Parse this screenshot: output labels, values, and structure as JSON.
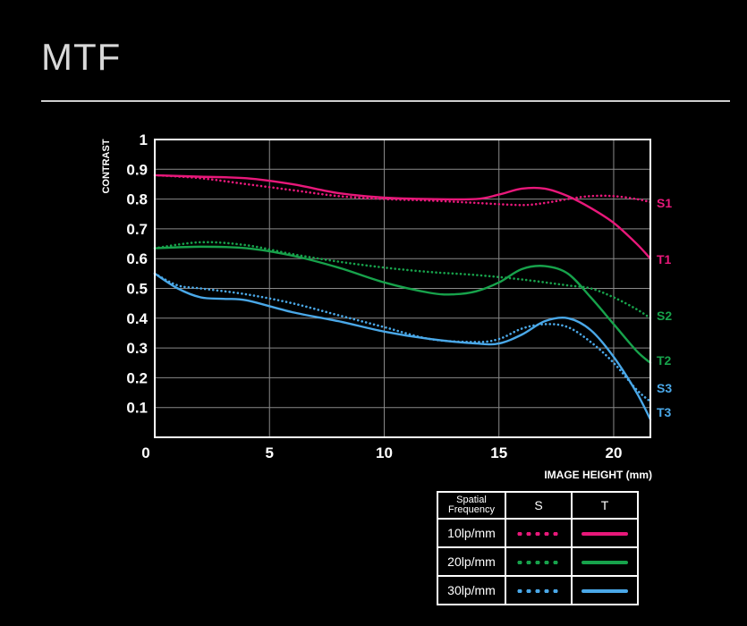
{
  "page": {
    "title": "MTF"
  },
  "legend": {
    "header": {
      "freq_line1": "Spatial",
      "freq_line2": "Frequency",
      "s": "S",
      "t": "T"
    },
    "rows": [
      {
        "label": "10lp/mm",
        "color": "#e8187a"
      },
      {
        "label": "20lp/mm",
        "color": "#17a24b"
      },
      {
        "label": "30lp/mm",
        "color": "#4aa8e8"
      }
    ]
  },
  "chart_data": {
    "type": "line",
    "title": "",
    "xlabel": "IMAGE HEIGHT  (mm)",
    "ylabel": "CONTRAST",
    "xlim": [
      0,
      21.6
    ],
    "ylim": [
      0,
      1
    ],
    "xticks": [
      "0",
      "5",
      "10",
      "15",
      "20"
    ],
    "yticks": [
      "0.1",
      "0.2",
      "0.3",
      "0.4",
      "0.5",
      "0.6",
      "0.7",
      "0.8",
      "0.9",
      "1"
    ],
    "grid": true,
    "series": [
      {
        "name": "S1",
        "color": "#e8187a",
        "style": "dotted",
        "x": [
          0,
          2,
          4,
          6,
          8,
          10,
          12,
          14,
          16,
          17,
          18,
          19,
          20,
          21,
          21.6
        ],
        "y": [
          0.88,
          0.87,
          0.85,
          0.83,
          0.81,
          0.8,
          0.795,
          0.787,
          0.78,
          0.787,
          0.8,
          0.81,
          0.81,
          0.8,
          0.79
        ]
      },
      {
        "name": "T1",
        "color": "#e8187a",
        "style": "solid",
        "x": [
          0,
          2,
          4,
          6,
          8,
          10,
          12,
          14,
          15,
          16,
          17,
          18,
          19,
          20,
          21,
          21.6
        ],
        "y": [
          0.88,
          0.875,
          0.87,
          0.85,
          0.82,
          0.805,
          0.8,
          0.8,
          0.815,
          0.835,
          0.835,
          0.81,
          0.77,
          0.72,
          0.65,
          0.6
        ]
      },
      {
        "name": "S2",
        "color": "#17a24b",
        "style": "dotted",
        "x": [
          0,
          2,
          4,
          6,
          8,
          10,
          12,
          14,
          16,
          18,
          19,
          20,
          21,
          21.6
        ],
        "y": [
          0.635,
          0.655,
          0.645,
          0.615,
          0.59,
          0.57,
          0.555,
          0.545,
          0.53,
          0.51,
          0.5,
          0.47,
          0.43,
          0.4
        ]
      },
      {
        "name": "T2",
        "color": "#17a24b",
        "style": "solid",
        "x": [
          0,
          2,
          4,
          6,
          8,
          10,
          12,
          13,
          14,
          15,
          16,
          17,
          18,
          19,
          20,
          21,
          21.6
        ],
        "y": [
          0.635,
          0.64,
          0.635,
          0.61,
          0.57,
          0.52,
          0.485,
          0.48,
          0.49,
          0.52,
          0.565,
          0.575,
          0.55,
          0.47,
          0.38,
          0.29,
          0.25
        ]
      },
      {
        "name": "S3",
        "color": "#4aa8e8",
        "style": "dotted",
        "x": [
          0,
          1,
          2,
          4,
          6,
          8,
          10,
          12,
          14,
          15,
          16,
          17,
          18,
          19,
          20,
          21,
          21.6
        ],
        "y": [
          0.55,
          0.51,
          0.5,
          0.48,
          0.45,
          0.41,
          0.37,
          0.33,
          0.32,
          0.33,
          0.365,
          0.38,
          0.37,
          0.32,
          0.25,
          0.16,
          0.12
        ]
      },
      {
        "name": "T3",
        "color": "#4aa8e8",
        "style": "solid",
        "x": [
          0,
          1,
          2,
          3,
          4,
          6,
          8,
          10,
          12,
          14,
          15,
          16,
          17,
          18,
          19,
          20,
          21,
          21.6
        ],
        "y": [
          0.55,
          0.5,
          0.47,
          0.465,
          0.46,
          0.42,
          0.39,
          0.355,
          0.33,
          0.315,
          0.315,
          0.345,
          0.39,
          0.4,
          0.36,
          0.27,
          0.15,
          0.06
        ]
      }
    ]
  }
}
